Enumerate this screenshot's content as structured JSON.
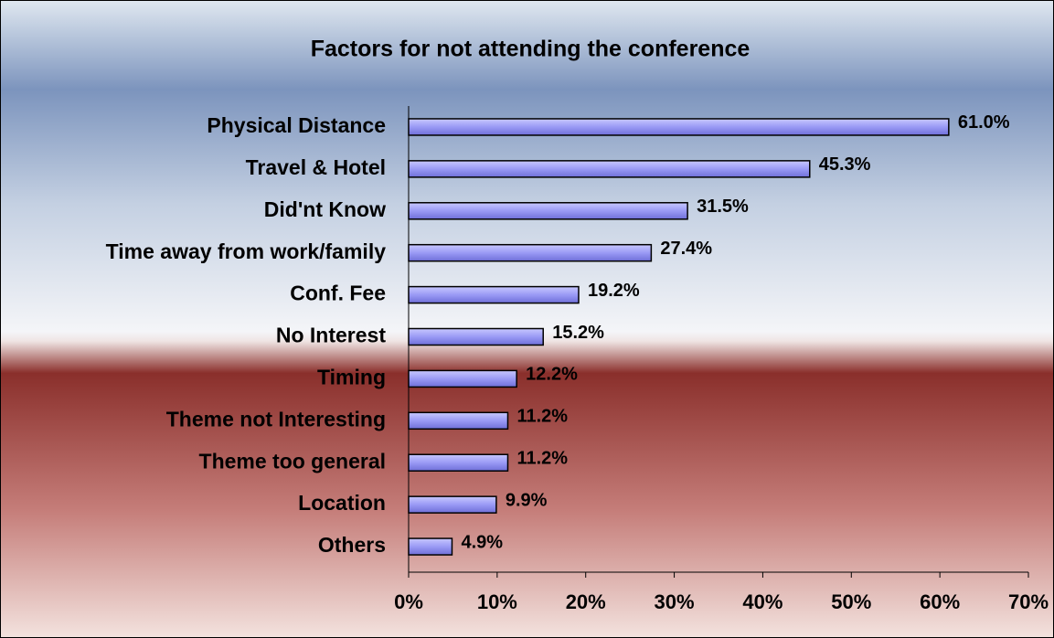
{
  "chart_data": {
    "type": "bar",
    "orientation": "horizontal",
    "title": "Factors for not attending the conference",
    "categories": [
      "Physical Distance",
      "Travel & Hotel",
      "Did'nt Know",
      "Time away from work/family",
      "Conf. Fee",
      "No Interest",
      "Timing",
      "Theme not Interesting",
      "Theme too general",
      "Location",
      "Others"
    ],
    "values": [
      61.0,
      45.3,
      31.5,
      27.4,
      19.2,
      15.2,
      12.2,
      11.2,
      11.2,
      9.9,
      4.9
    ],
    "value_labels": [
      "61.0%",
      "45.3%",
      "31.5%",
      "27.4%",
      "19.2%",
      "15.2%",
      "12.2%",
      "11.2%",
      "11.2%",
      "9.9%",
      "4.9%"
    ],
    "color": "#9999ff",
    "xlim": [
      0,
      70
    ],
    "xticks": [
      {
        "value": 0,
        "label": "0%"
      },
      {
        "value": 10,
        "label": "10%"
      },
      {
        "value": 20,
        "label": "20%"
      },
      {
        "value": 30,
        "label": "30%"
      },
      {
        "value": 40,
        "label": "40%"
      },
      {
        "value": 50,
        "label": "50%"
      },
      {
        "value": 60,
        "label": "60%"
      },
      {
        "value": 70,
        "label": "70%"
      }
    ],
    "grid": false
  }
}
